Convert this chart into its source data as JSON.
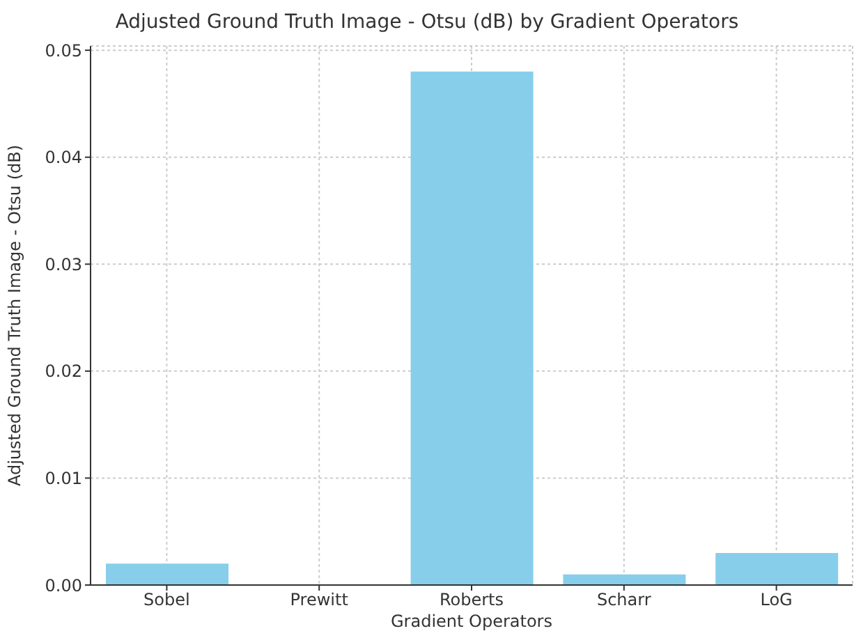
{
  "chart_data": {
    "type": "bar",
    "title": "Adjusted Ground Truth Image - Otsu (dB) by Gradient Operators",
    "xlabel": "Gradient Operators",
    "ylabel": "Adjusted Ground Truth Image - Otsu (dB)",
    "categories": [
      "Sobel",
      "Prewitt",
      "Roberts",
      "Scharr",
      "LoG"
    ],
    "values": [
      0.002,
      0,
      0.048,
      0.001,
      0.003
    ],
    "color": "#87ceeb",
    "ylim": [
      0,
      0.0504
    ],
    "yticks": [
      {
        "value": 0,
        "label": "0.00"
      },
      {
        "value": 0.01,
        "label": "0.01"
      },
      {
        "value": 0.02,
        "label": "0.02"
      },
      {
        "value": 0.03,
        "label": "0.03"
      },
      {
        "value": 0.04,
        "label": "0.04"
      },
      {
        "value": 0.05,
        "label": "0.05"
      }
    ],
    "grid": true
  }
}
